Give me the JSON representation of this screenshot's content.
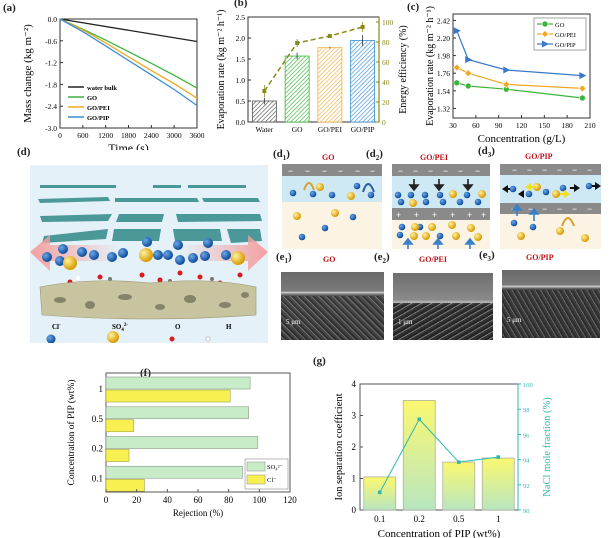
{
  "panel_labels": {
    "a": "(a)",
    "b": "(b)",
    "c": "(c)",
    "d": "(d)",
    "d1": "(d",
    "d1_sub": "1",
    ")": ")",
    "d2": "(d",
    "d2_sub": "2",
    "d3": "(d",
    "d3_sub": "3",
    "e1": "(e",
    "e1_sub": "1",
    "e2": "(e",
    "e2_sub": "2",
    "e3": "(e",
    "e3_sub": "3",
    "f": "(f)",
    "g": "(g)"
  },
  "schematic_d": {
    "legend": [
      {
        "label": "Cl",
        "sup": "-",
        "color": "#1f5fb0"
      },
      {
        "label": "SO",
        "sub": "4",
        "sup": "2-",
        "color": "#e8b21a"
      },
      {
        "label": "O",
        "color": "#d81b1b"
      },
      {
        "label": "H",
        "color": "#f2f2f2"
      }
    ]
  },
  "mechanism": {
    "d1_title": "GO",
    "d2_title": "GO/PEI",
    "d3_title": "GO/PIP",
    "minus": "−",
    "plus": "+"
  },
  "sem": {
    "e1_title": "GO",
    "e1_scale": "5 μm",
    "e2_title": "GO/PEI",
    "e2_scale": "1 μm",
    "e3_title": "GO/PIP",
    "e3_scale": "5 μm"
  },
  "chart_data": [
    {
      "id": "a",
      "type": "line",
      "title": "",
      "xlabel": "Time (s)",
      "ylabel": "Mass change (kg m⁻²)",
      "xlim": [
        0,
        3600
      ],
      "ylim": [
        -3.0,
        0.0
      ],
      "xticks": [
        0,
        600,
        1200,
        1800,
        2400,
        3000,
        3600
      ],
      "yticks": [
        0.0,
        -0.6,
        -1.2,
        -1.8,
        -2.4,
        -3.0
      ],
      "ytick_labels": [
        "0.0",
        "-0.6",
        "-1.2",
        "-1.8",
        "-2.4",
        "-3.0"
      ],
      "legend_position": "bottom-left",
      "series": [
        {
          "name": "water bulk",
          "color": "#222222",
          "x": [
            0,
            3600
          ],
          "y": [
            0,
            -0.62
          ]
        },
        {
          "name": "GO",
          "color": "#3cb43c",
          "x": [
            0,
            600,
            1200,
            1800,
            2400,
            3000,
            3600
          ],
          "y": [
            0,
            -0.28,
            -0.58,
            -0.9,
            -1.22,
            -1.55,
            -1.9
          ]
        },
        {
          "name": "GO/PEI",
          "color": "#f0a820",
          "x": [
            0,
            600,
            1200,
            1800,
            2400,
            3000,
            3600
          ],
          "y": [
            0,
            -0.3,
            -0.66,
            -1.04,
            -1.42,
            -1.78,
            -2.18
          ]
        },
        {
          "name": "GO/PIP",
          "color": "#3a8fd8",
          "x": [
            0,
            600,
            1200,
            1800,
            2400,
            3000,
            3600
          ],
          "y": [
            0,
            -0.35,
            -0.74,
            -1.14,
            -1.54,
            -1.94,
            -2.38
          ]
        }
      ]
    },
    {
      "id": "b",
      "type": "bar",
      "categories": [
        "Water",
        "GO",
        "GO/PEI",
        "GO/PIP"
      ],
      "ylabel": "Evaporation rate (kg m⁻² h⁻¹)",
      "y2label": "Energy efficiency (%)",
      "ylim": [
        0,
        2.5
      ],
      "y2lim": [
        0,
        105
      ],
      "yticks": [
        0.0,
        0.5,
        1.0,
        1.5,
        2.0,
        2.5
      ],
      "ytick_labels": [
        "0.0",
        "0.5",
        "1.0",
        "1.5",
        "2.0",
        "2.5"
      ],
      "y2ticks": [
        0,
        20,
        40,
        60,
        80,
        100
      ],
      "series": [
        {
          "name": "Evaporation rate",
          "values": [
            0.5,
            1.57,
            1.77,
            1.94
          ],
          "errors": [
            0.08,
            0.08,
            0.02,
            0.13
          ],
          "colors": [
            "#555555",
            "#3cb43c",
            "#f0b040",
            "#3a8fd8"
          ]
        },
        {
          "name": "Energy efficiency",
          "axis": "right",
          "values": [
            31,
            79,
            86,
            95
          ],
          "errors": [
            6,
            4,
            1,
            5
          ],
          "color": "#8a8a1a"
        }
      ]
    },
    {
      "id": "c",
      "type": "line",
      "xlabel": "Concentration (g/L)",
      "ylabel": "Evaporation rate (kg m⁻² h⁻¹)",
      "xlim": [
        30,
        210
      ],
      "ylim": [
        1.2,
        2.5
      ],
      "xticks": [
        30,
        60,
        90,
        120,
        150,
        180,
        210
      ],
      "yticks": [
        1.32,
        1.54,
        1.76,
        1.98,
        2.2,
        2.42
      ],
      "ytick_labels": [
        "1.32",
        "1.54",
        "1.76",
        "1.98",
        "2.20",
        "2.42"
      ],
      "legend_position": "top-right",
      "series": [
        {
          "name": "GO",
          "color": "#3cb43c",
          "marker": "circle",
          "x": [
            35,
            50,
            100,
            200
          ],
          "y": [
            1.64,
            1.6,
            1.56,
            1.45
          ]
        },
        {
          "name": "GO/PEI",
          "color": "#f0a820",
          "marker": "diamond",
          "x": [
            35,
            50,
            100,
            200
          ],
          "y": [
            1.83,
            1.76,
            1.62,
            1.57
          ]
        },
        {
          "name": "GO/PIP",
          "color": "#3a78c8",
          "marker": "triangle-right",
          "x": [
            35,
            50,
            100,
            200
          ],
          "y": [
            2.29,
            1.93,
            1.8,
            1.73
          ]
        }
      ]
    },
    {
      "id": "f",
      "type": "bar",
      "orientation": "horizontal",
      "categories": [
        "0.1",
        "0.2",
        "0.5",
        "1"
      ],
      "xlabel": "Rejection (%)",
      "ylabel": "Concentration of PIP (wt%)",
      "xlim": [
        0,
        120
      ],
      "xticks": [
        0,
        20,
        40,
        60,
        80,
        100,
        120
      ],
      "legend_position": "bottom-right",
      "series": [
        {
          "name": "SO₄²⁻",
          "color": "#c8ecc8",
          "values": [
            89,
            99,
            93,
            94
          ]
        },
        {
          "name": "Cl⁻",
          "color": "#f8f050",
          "values": [
            25,
            15,
            18,
            81
          ]
        }
      ]
    },
    {
      "id": "g",
      "type": "bar",
      "categories": [
        "0.1",
        "0.2",
        "0.5",
        "1"
      ],
      "xlabel": "Concentration of PIP (wt%)",
      "ylabel": "Ion separation coefficient",
      "y2label": "NaCl mole fraction (%)",
      "ylim": [
        0,
        4
      ],
      "y2lim": [
        90,
        100
      ],
      "yticks": [
        0,
        1,
        2,
        3,
        4
      ],
      "y2ticks": [
        90,
        92,
        94,
        96,
        98,
        100
      ],
      "series": [
        {
          "name": "Ion separation coefficient",
          "values": [
            1.05,
            3.48,
            1.52,
            1.65
          ]
        },
        {
          "name": "NaCl mole fraction",
          "axis": "right",
          "color": "#30b8b0",
          "values": [
            91.4,
            97.2,
            93.8,
            94.2
          ]
        }
      ]
    }
  ]
}
